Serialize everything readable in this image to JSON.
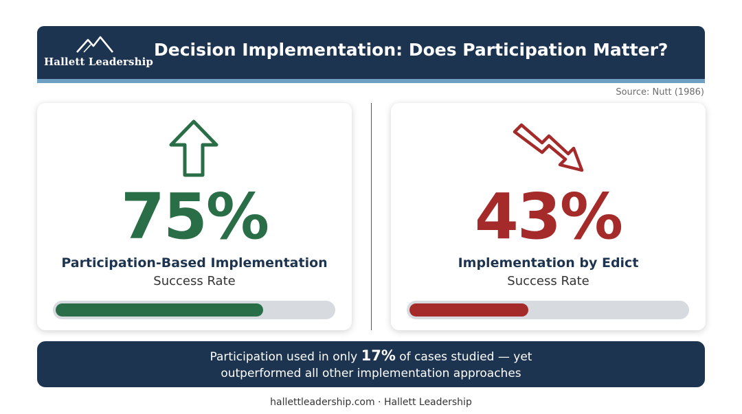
{
  "header": {
    "logo_text": "Hallett Leadership",
    "title": "Decision Implementation: Does Participation Matter?"
  },
  "source": "Source: Nutt (1986)",
  "cards": [
    {
      "value_text": "75%",
      "value": 75,
      "title": "Participation-Based Implementation",
      "subtitle": "Success Rate",
      "arrow": "up-arrow-icon",
      "color": "#2a6e47"
    },
    {
      "value_text": "43%",
      "value": 43,
      "title": "Implementation by Edict",
      "subtitle": "Success Rate",
      "arrow": "trend-down-arrow-icon",
      "color": "#a52a2a"
    }
  ],
  "banner": {
    "line1_before": "Participation used in only ",
    "line1_highlight": "17%",
    "line1_after": " of cases studied — yet",
    "line2": "outperformed all other implementation approaches"
  },
  "footer": "hallettleadership.com · Hallett Leadership",
  "colors": {
    "navy": "#1d3450",
    "accent_stripe": "#6f9fc2",
    "green": "#2a6e47",
    "red": "#a52a2a",
    "bar_track": "#d7dbe0"
  }
}
